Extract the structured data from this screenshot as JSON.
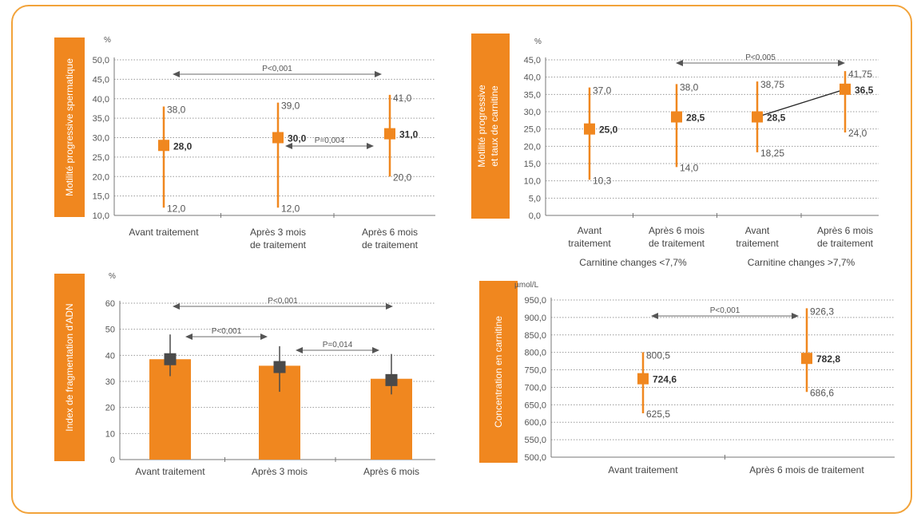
{
  "chart_data": [
    {
      "type": "range",
      "ylabel": "Motilité progressive spermatique",
      "unit": "%",
      "ylim": [
        10,
        50
      ],
      "yticks": [
        "10,0",
        "15,0",
        "20,0",
        "25,0",
        "30,0",
        "35,0",
        "40,0",
        "45,0",
        "50,0"
      ],
      "categories": [
        [
          "Avant traitement"
        ],
        [
          "Après 3 mois",
          "de traitement"
        ],
        [
          "Après 6 mois",
          "de traitement"
        ]
      ],
      "points": [
        {
          "value": 28,
          "low": 12,
          "high": 38,
          "value_label": "28,0",
          "low_label": "12,0",
          "high_label": "38,0"
        },
        {
          "value": 30,
          "low": 12,
          "high": 39,
          "value_label": "30,0",
          "low_label": "12,0",
          "high_label": "39,0"
        },
        {
          "value": 31,
          "low": 20,
          "high": 41,
          "value_label": "31,0",
          "low_label": "20,0",
          "high_label": "41,0"
        }
      ],
      "comparisons": [
        {
          "from": 0,
          "to": 2,
          "label": "P<0,001"
        },
        {
          "from": 1,
          "to": 2,
          "label": "P=0,004"
        }
      ]
    },
    {
      "type": "range",
      "ylabel": "Motilité progressive et taux de carnitine",
      "unit": "%",
      "ylim": [
        0,
        45
      ],
      "yticks": [
        "0,0",
        "5,0",
        "10,0",
        "15,0",
        "20,0",
        "25,0",
        "30,0",
        "35,0",
        "40,0",
        "45,0"
      ],
      "categories": [
        [
          "Avant",
          "traitement"
        ],
        [
          "Après 6 mois",
          "de traitement"
        ],
        [
          "Avant",
          "traitement"
        ],
        [
          "Après 6 mois",
          "de traitement"
        ]
      ],
      "groups": [
        "Carnitine changes <7,7%",
        "Carnitine changes >7,7%"
      ],
      "points": [
        {
          "value": 25,
          "low": 10.3,
          "high": 37,
          "value_label": "25,0",
          "low_label": "10,3",
          "high_label": "37,0"
        },
        {
          "value": 28.5,
          "low": 14,
          "high": 38,
          "value_label": "28,5",
          "low_label": "14,0",
          "high_label": "38,0"
        },
        {
          "value": 28.5,
          "low": 18.25,
          "high": 38.75,
          "value_label": "28,5",
          "low_label": "18,25",
          "high_label": "38,75"
        },
        {
          "value": 36.5,
          "low": 24,
          "high": 41.75,
          "value_label": "36,5",
          "low_label": "24,0",
          "high_label": "41,75"
        }
      ],
      "comparisons": [
        {
          "from": 1,
          "to": 3,
          "label": "P<0,005"
        }
      ]
    },
    {
      "type": "bar",
      "ylabel": "Index de fragmentation d'ADN",
      "unit": "%",
      "ylim": [
        0,
        60
      ],
      "yticks": [
        "0",
        "10",
        "20",
        "30",
        "40",
        "50",
        "60"
      ],
      "categories": [
        [
          "Avant traitement"
        ],
        [
          "Après 3 mois"
        ],
        [
          "Après 6 mois"
        ]
      ],
      "values": [
        38.5,
        36,
        31
      ],
      "points": [
        {
          "value": 38.5,
          "low": 32,
          "high": 48
        },
        {
          "value": 35.5,
          "low": 26,
          "high": 43.5
        },
        {
          "value": 30.5,
          "low": 25,
          "high": 40.5
        }
      ],
      "comparisons": [
        {
          "from": 0,
          "to": 2,
          "label": "P<0,001"
        },
        {
          "from": 0,
          "to": 1,
          "label": "P<0,001"
        },
        {
          "from": 1,
          "to": 2,
          "label": "P=0,014"
        }
      ]
    },
    {
      "type": "range",
      "ylabel": "Concentration en carnitine",
      "unit": "µmol/L",
      "ylim": [
        500,
        950
      ],
      "yticks": [
        "500,0",
        "550,0",
        "600,0",
        "650,0",
        "700,0",
        "750,0",
        "800,0",
        "850,0",
        "900,0",
        "950,0"
      ],
      "categories": [
        [
          "Avant traitement"
        ],
        [
          "Après 6 mois de traitement"
        ]
      ],
      "points": [
        {
          "value": 724.6,
          "low": 625.5,
          "high": 800.5,
          "value_label": "724,6",
          "low_label": "625,5",
          "high_label": "800,5"
        },
        {
          "value": 782.8,
          "low": 686.6,
          "high": 926.3,
          "value_label": "782,8",
          "low_label": "686,6",
          "high_label": "926,3"
        }
      ],
      "comparisons": [
        {
          "from": 0,
          "to": 1,
          "label": "P<0,001"
        }
      ]
    }
  ],
  "colors": {
    "orange": "#f0871f",
    "frame": "#f2a33a",
    "dark_marker": "#4a4a4a",
    "arrow": "#888888",
    "axis": "#777777"
  }
}
